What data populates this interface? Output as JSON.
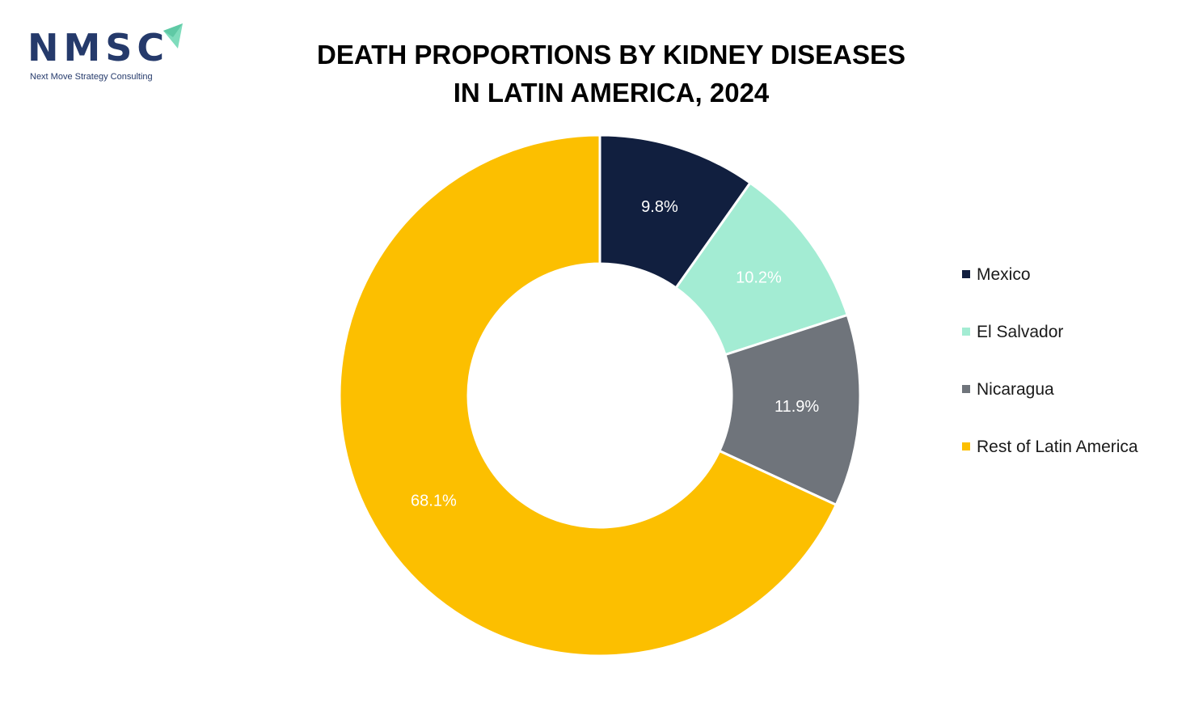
{
  "logo": {
    "text": "NMSC",
    "subtitle": "Next Move Strategy Consulting"
  },
  "chart_data": {
    "type": "pie",
    "donut": true,
    "title": "DEATH PROPORTIONS BY KIDNEY DISEASES IN LATIN AMERICA, 2024",
    "title_lines": [
      "DEATH PROPORTIONS BY KIDNEY DISEASES",
      "IN LATIN AMERICA, 2024"
    ],
    "legend_position": "right",
    "categories": [
      "Mexico",
      "El Salvador",
      "Nicaragua",
      "Rest of Latin America"
    ],
    "values": [
      9.8,
      10.2,
      11.9,
      68.1
    ],
    "labels": [
      "9.8%",
      "10.2%",
      "11.9%",
      "68.1%"
    ],
    "colors": [
      "#111f3f",
      "#a3ecd3",
      "#6f747b",
      "#fcbf00"
    ],
    "label_colors": [
      "#ffffff",
      "#ffffff",
      "#ffffff",
      "#ffffff"
    ]
  }
}
